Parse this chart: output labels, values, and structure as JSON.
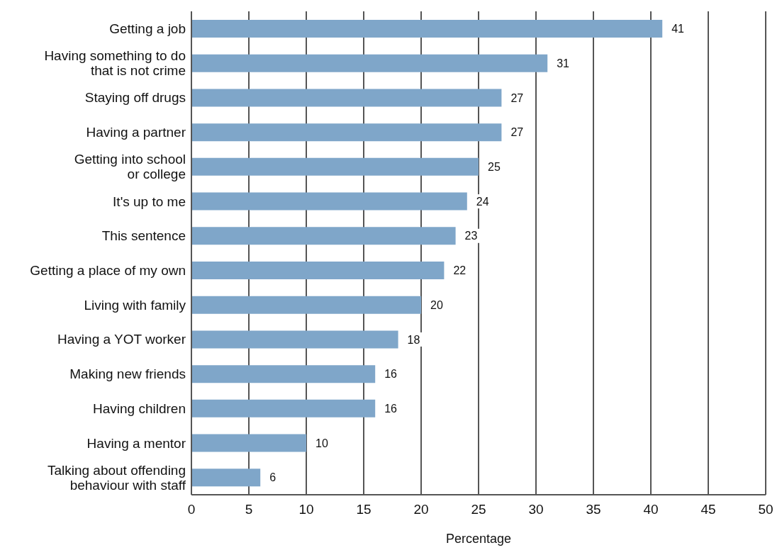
{
  "chart_data": {
    "type": "bar",
    "orientation": "horizontal",
    "xlabel": "Percentage",
    "categories": [
      "Getting a job",
      "Having something to do\nthat is not crime",
      "Staying off drugs",
      "Having a partner",
      "Getting into school\nor college",
      "It's up to me",
      "This sentence",
      "Getting a place of my own",
      "Living with family",
      "Having a YOT worker",
      "Making new friends",
      "Having children",
      "Having a mentor",
      "Talking about offending\nbehaviour with staff"
    ],
    "values": [
      41,
      31,
      27,
      27,
      25,
      24,
      23,
      22,
      20,
      18,
      16,
      16,
      10,
      6
    ],
    "color": "#7fa6c9",
    "xlim": [
      0,
      50
    ],
    "xticks": [
      0,
      5,
      10,
      15,
      20,
      25,
      30,
      35,
      40,
      45,
      50
    ],
    "grid": "x",
    "data_labels": true
  }
}
